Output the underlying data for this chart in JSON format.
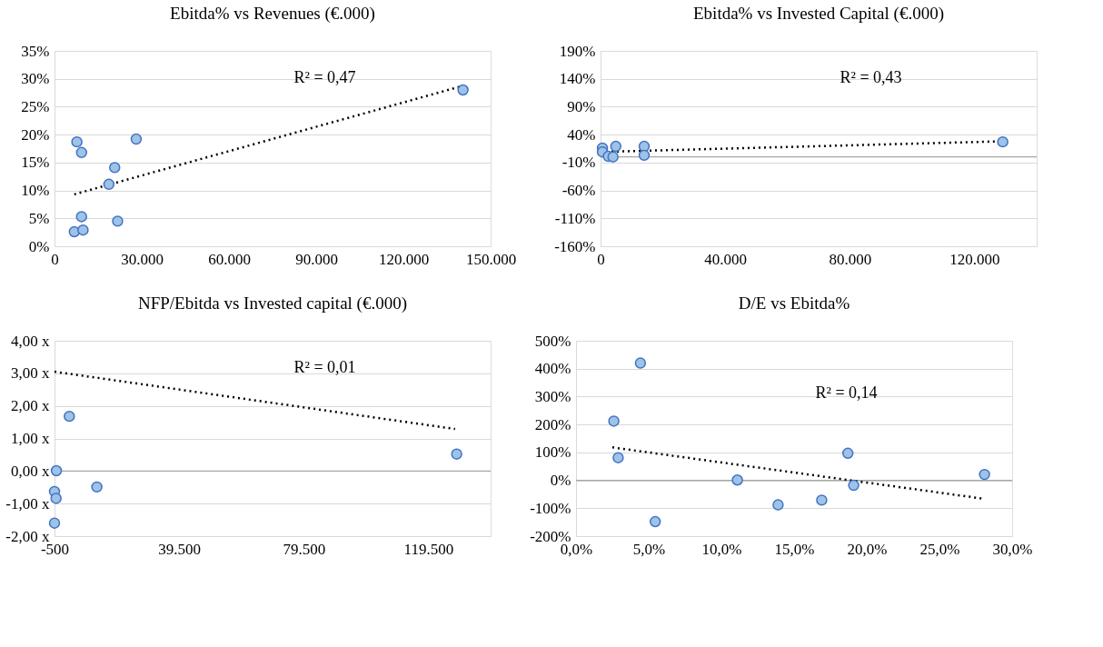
{
  "chart_data": [
    {
      "type": "scatter",
      "title": "Ebitda% vs Revenues (€.000)",
      "marker": "circle",
      "grid": "y",
      "xlim": [
        0,
        150000
      ],
      "xticks": [
        0,
        {
          "value": 30000,
          "label": "30.000"
        },
        {
          "value": 60000,
          "label": "60.000"
        },
        {
          "value": 90000,
          "label": "90.000"
        },
        {
          "value": 120000,
          "label": "120.000"
        },
        {
          "value": 150000,
          "label": "150.000"
        }
      ],
      "ylim": [
        0,
        35
      ],
      "yticks": [
        {
          "value": 0,
          "label": "0%"
        },
        {
          "value": 5,
          "label": "5%"
        },
        {
          "value": 10,
          "label": "10%"
        },
        {
          "value": 15,
          "label": "15%"
        },
        {
          "value": 20,
          "label": "20%"
        },
        {
          "value": 25,
          "label": "25%"
        },
        {
          "value": 30,
          "label": "30%"
        },
        {
          "value": 35,
          "label": "35%"
        }
      ],
      "series": [
        {
          "type": "scatter",
          "color": "#9dc3e6",
          "x": [
            7700,
            9300,
            9300,
            6800,
            9800,
            18700,
            20700,
            21700,
            28100,
            140500
          ],
          "values": [
            18.7,
            16.8,
            5.3,
            2.6,
            2.9,
            11.1,
            14.1,
            4.5,
            19.2,
            28.0
          ]
        },
        {
          "type": "line",
          "color": "#000000",
          "line_style": "dotted",
          "marker": "none",
          "x": [
            6800,
            139500
          ],
          "values": [
            9.3,
            28.6
          ]
        }
      ],
      "annotations": [
        "R² = 0,47"
      ]
    },
    {
      "type": "scatter",
      "title": "Ebitda% vs Invested Capital (€.000)",
      "marker": "circle",
      "grid": "y",
      "xlim": [
        0,
        140000
      ],
      "xticks": [
        0,
        {
          "value": 40000,
          "label": "40.000"
        },
        {
          "value": 80000,
          "label": "80.000"
        },
        {
          "value": 120000,
          "label": "120.000"
        }
      ],
      "ylim": [
        -160,
        190
      ],
      "yticks": [
        {
          "value": -160,
          "label": "-160%"
        },
        {
          "value": -110,
          "label": "-110%"
        },
        {
          "value": -60,
          "label": "-60%"
        },
        {
          "value": -10,
          "label": "-10%"
        },
        {
          "value": 40,
          "label": "40%"
        },
        {
          "value": 90,
          "label": "90%"
        },
        {
          "value": 140,
          "label": "140%"
        },
        {
          "value": 190,
          "label": "190%"
        }
      ],
      "ref_lines": [
        {
          "axis": "y",
          "value": 0,
          "color": "#a6a6a6"
        }
      ],
      "series": [
        {
          "type": "scatter",
          "color": "#9dc3e6",
          "x": [
            600,
            600,
            2500,
            4000,
            4900,
            14000,
            14000,
            129100
          ],
          "values": [
            16,
            9,
            1,
            0,
            19,
            19,
            3,
            27
          ]
        },
        {
          "type": "line",
          "color": "#000000",
          "line_style": "dotted",
          "marker": "none",
          "x": [
            0,
            128700
          ],
          "values": [
            9,
            28
          ]
        }
      ],
      "annotations": [
        "R² = 0,43"
      ]
    },
    {
      "type": "scatter",
      "title": "NFP/Ebitda vs Invested capital (€.000)",
      "marker": "circle",
      "grid": "y",
      "xlim": [
        -500,
        139500
      ],
      "xticks": [
        -500,
        {
          "value": 39500,
          "label": "39.500"
        },
        {
          "value": 79500,
          "label": "79.500"
        },
        {
          "value": 119500,
          "label": "119.500"
        }
      ],
      "ylim": [
        -2,
        4
      ],
      "yticks": [
        {
          "value": -2,
          "label": "-2,00 x"
        },
        {
          "value": -1,
          "label": "-1,00 x"
        },
        {
          "value": 0,
          "label": "0,00 x"
        },
        {
          "value": 1,
          "label": "1,00 x"
        },
        {
          "value": 2,
          "label": "2,00 x"
        },
        {
          "value": 3,
          "label": "3,00 x"
        },
        {
          "value": 4,
          "label": "4,00 x"
        }
      ],
      "ref_lines": [
        {
          "axis": "y",
          "value": 0,
          "color": "#a6a6a6"
        }
      ],
      "series": [
        {
          "type": "scatter",
          "color": "#9dc3e6",
          "x": [
            4250,
            100,
            -500,
            0,
            -500,
            13100,
            128600
          ],
          "values": [
            1.68,
            0.01,
            -0.63,
            -0.84,
            -1.6,
            -0.49,
            0.52
          ]
        },
        {
          "type": "line",
          "color": "#000000",
          "line_style": "dotted",
          "marker": "none",
          "x": [
            -500,
            128100
          ],
          "values": [
            3.05,
            1.29
          ]
        }
      ],
      "annotations": [
        "R² = 0,01"
      ]
    },
    {
      "type": "scatter",
      "title": "D/E vs Ebitda%",
      "marker": "circle",
      "grid": "y",
      "xlim": [
        0,
        30
      ],
      "xticks": [
        {
          "value": 0,
          "label": "0,0%"
        },
        {
          "value": 5,
          "label": "5,0%"
        },
        {
          "value": 10,
          "label": "10,0%"
        },
        {
          "value": 15,
          "label": "15,0%"
        },
        {
          "value": 20,
          "label": "20,0%"
        },
        {
          "value": 25,
          "label": "25,0%"
        },
        {
          "value": 30,
          "label": "30,0%"
        }
      ],
      "ylim": [
        -200,
        500
      ],
      "yticks": [
        {
          "value": -200,
          "label": "-200%"
        },
        {
          "value": -100,
          "label": "-100%"
        },
        {
          "value": 0,
          "label": "0%"
        },
        {
          "value": 100,
          "label": "100%"
        },
        {
          "value": 200,
          "label": "200%"
        },
        {
          "value": 300,
          "label": "300%"
        },
        {
          "value": 400,
          "label": "400%"
        },
        {
          "value": 500,
          "label": "500%"
        }
      ],
      "ref_lines": [
        {
          "axis": "y",
          "value": 0,
          "color": "#a6a6a6"
        }
      ],
      "series": [
        {
          "type": "scatter",
          "color": "#9dc3e6",
          "x": [
            4.43,
            2.6,
            2.9,
            5.45,
            11.1,
            13.9,
            16.9,
            18.7,
            19.1,
            28.1
          ],
          "values": [
            420,
            212,
            81,
            -148,
            1,
            -88,
            -71,
            97,
            -18,
            21
          ]
        },
        {
          "type": "line",
          "color": "#000000",
          "line_style": "dotted",
          "marker": "none",
          "x": [
            2.5,
            27.9
          ],
          "values": [
            118,
            -65
          ]
        }
      ],
      "annotations": [
        "R² = 0,14"
      ]
    }
  ]
}
